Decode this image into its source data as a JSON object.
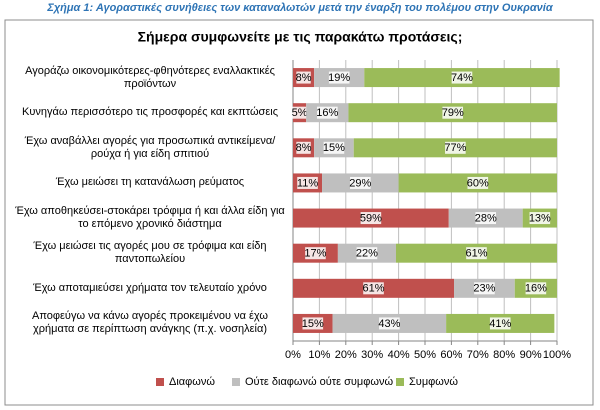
{
  "figure_title": "Σχήμα 1: Αγοραστικές συνήθειες των καταναλωτών μετά την έναρξη του πολέμου στην Ουκρανία",
  "chart_data": {
    "type": "stacked-barh",
    "title": "Σήμερα συμφωνείτε με τις παρακάτω προτάσεις;",
    "categories": [
      "Αγοράζω οικονομικότερες-φθηνότερες εναλλακτικές προϊόντων",
      "Κυνηγάω περισσότερο τις προσφορές και εκπτώσεις",
      "Έχω αναβάλλει αγορές για προσωπικά αντικείμενα/ρούχα ή για είδη σπιτιού",
      "Έχω μειώσει τη κατανάλωση ρεύματος",
      "Έχω αποθηκεύσει-στοκάρει τρόφιμα ή και άλλα είδη για το επόμενο χρονικό διάστημα",
      "Έχω μειώσει τις αγορές μου σε τρόφιμα και είδη παντοπωλείου",
      "Έχω αποταμιεύσει χρήματα τον τελευταίο χρόνο",
      "Αποφεύγω να κάνω αγορές προκειμένου να έχω χρήματα σε περίπτωση ανάγκης (π.χ. νοσηλεία)"
    ],
    "series": [
      {
        "name": "Διαφωνώ",
        "color": "#c0504d",
        "values": [
          8,
          5,
          8,
          11,
          59,
          17,
          61,
          15
        ],
        "value_labels": [
          "8%",
          "5%",
          "8%",
          "11%",
          "59%",
          "17%",
          "61%",
          "15%"
        ]
      },
      {
        "name": "Ούτε διαφωνώ ούτε συμφωνώ",
        "color": "#bfbfbf",
        "values": [
          19,
          16,
          15,
          29,
          28,
          22,
          23,
          43
        ],
        "value_labels": [
          "19%",
          "16%",
          "15%",
          "29%",
          "28%",
          "22%",
          "23%",
          "43%"
        ]
      },
      {
        "name": "Συμφωνώ",
        "color": "#9bbb59",
        "values": [
          74,
          79,
          77,
          60,
          13,
          61,
          16,
          41
        ],
        "value_labels": [
          "74%",
          "79%",
          "77%",
          "60%",
          "13%",
          "61%",
          "16%",
          "41%"
        ]
      }
    ],
    "xlim": [
      0,
      100
    ],
    "xticks": [
      {
        "value": 0,
        "label": "0%"
      },
      {
        "value": 10,
        "label": "10%"
      },
      {
        "value": 20,
        "label": "20%"
      },
      {
        "value": 30,
        "label": "30%"
      },
      {
        "value": 40,
        "label": "40%"
      },
      {
        "value": 50,
        "label": "50%"
      },
      {
        "value": 60,
        "label": "60%"
      },
      {
        "value": 70,
        "label": "70%"
      },
      {
        "value": 80,
        "label": "80%"
      },
      {
        "value": 90,
        "label": "90%"
      },
      {
        "value": 100,
        "label": "100%"
      }
    ],
    "grid": true
  }
}
